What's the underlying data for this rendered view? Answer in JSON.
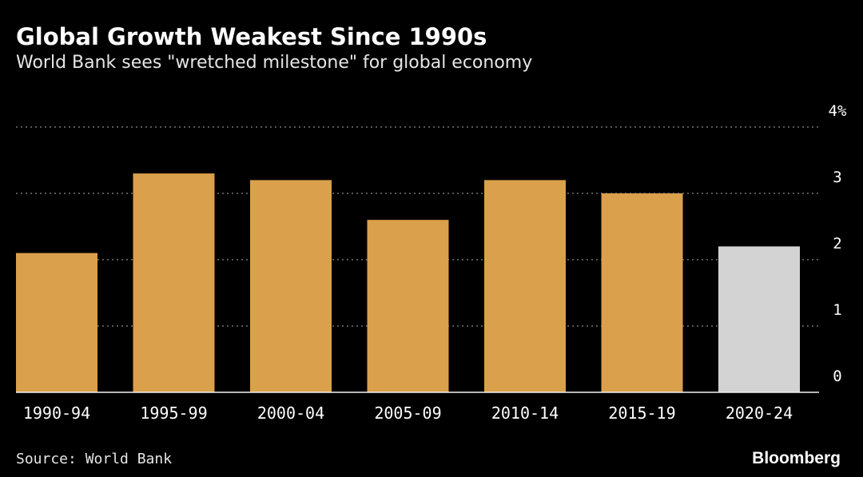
{
  "header": {
    "title": "Global Growth Weakest Since 1990s",
    "subtitle": "World Bank sees \"wretched milestone\" for global economy"
  },
  "footer": {
    "source": "Source: World Bank",
    "brand": "Bloomberg"
  },
  "colors": {
    "background": "#000000",
    "bar": "#daa04c",
    "bar_highlight": "#d3d3d3",
    "gridline": "#8a8a8a",
    "text": "#ffffff"
  },
  "chart_data": {
    "type": "bar",
    "title": "Global Growth Weakest Since 1990s",
    "subtitle": "World Bank sees \"wretched milestone\" for global economy",
    "categories": [
      "1990-94",
      "1995-99",
      "2000-04",
      "2005-09",
      "2010-14",
      "2015-19",
      "2020-24"
    ],
    "series": [
      {
        "values": [
          2.1,
          3.3,
          3.2,
          2.6,
          3.2,
          3.0,
          2.2
        ],
        "highlight_index": 6
      }
    ],
    "y_ticks": [
      "0",
      "1",
      "2",
      "3",
      "4%"
    ],
    "ylim": [
      0,
      4
    ],
    "y_axis_side": "right",
    "grid": true,
    "grid_style": "dotted",
    "legend": "none"
  }
}
